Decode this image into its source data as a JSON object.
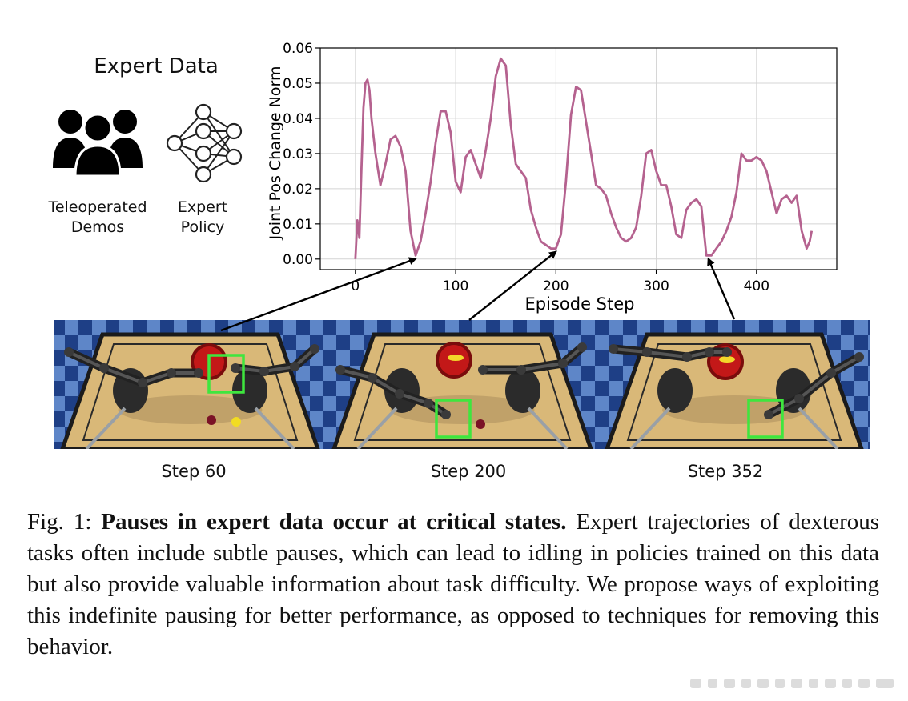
{
  "figure": {
    "expert_title": "Expert Data",
    "sources": [
      {
        "label_line1": "Teleoperated",
        "label_line2": "Demos",
        "icon": "people-icon"
      },
      {
        "label_line1": "Expert",
        "label_line2": "Policy",
        "icon": "neural-network-icon"
      }
    ],
    "frames": [
      {
        "label": "Step 60",
        "step": 60
      },
      {
        "label": "Step 200",
        "step": 200
      },
      {
        "label": "Step 352",
        "step": 352
      }
    ]
  },
  "chart_data": {
    "type": "line",
    "xlabel": "Episode Step",
    "ylabel": "Joint Pos Change Norm",
    "xlim": [
      -35,
      480
    ],
    "ylim": [
      -0.003,
      0.06
    ],
    "xticks": [
      0,
      100,
      200,
      300,
      400
    ],
    "yticks": [
      0.0,
      0.01,
      0.02,
      0.03,
      0.04,
      0.05,
      0.06
    ],
    "xtick_labels": [
      "0",
      "100",
      "200",
      "300",
      "400"
    ],
    "ytick_labels": [
      "0.00",
      "0.01",
      "0.02",
      "0.03",
      "0.04",
      "0.05",
      "0.06"
    ],
    "grid": true,
    "series": [
      {
        "color": "#b5628f",
        "x": [
          0,
          2,
          4,
          6,
          8,
          10,
          12,
          14,
          16,
          20,
          25,
          30,
          35,
          40,
          45,
          50,
          55,
          60,
          65,
          70,
          75,
          80,
          85,
          90,
          95,
          100,
          105,
          110,
          115,
          120,
          125,
          130,
          135,
          140,
          145,
          150,
          155,
          160,
          165,
          170,
          175,
          180,
          185,
          190,
          195,
          200,
          205,
          210,
          215,
          220,
          225,
          230,
          235,
          240,
          245,
          250,
          255,
          260,
          265,
          270,
          275,
          280,
          285,
          290,
          295,
          300,
          305,
          310,
          315,
          320,
          325,
          330,
          335,
          340,
          345,
          350,
          355,
          360,
          365,
          370,
          375,
          380,
          385,
          390,
          395,
          400,
          405,
          410,
          415,
          420,
          425,
          430,
          435,
          440,
          445,
          450,
          453,
          455
        ],
        "y": [
          0.0,
          0.011,
          0.006,
          0.025,
          0.043,
          0.05,
          0.051,
          0.048,
          0.04,
          0.03,
          0.021,
          0.027,
          0.034,
          0.035,
          0.032,
          0.025,
          0.008,
          0.001,
          0.005,
          0.013,
          0.022,
          0.033,
          0.042,
          0.042,
          0.036,
          0.022,
          0.019,
          0.029,
          0.031,
          0.027,
          0.023,
          0.031,
          0.04,
          0.052,
          0.057,
          0.055,
          0.038,
          0.027,
          0.025,
          0.023,
          0.014,
          0.009,
          0.005,
          0.004,
          0.003,
          0.003,
          0.007,
          0.022,
          0.041,
          0.049,
          0.048,
          0.039,
          0.03,
          0.021,
          0.02,
          0.018,
          0.013,
          0.009,
          0.006,
          0.005,
          0.006,
          0.009,
          0.018,
          0.03,
          0.031,
          0.025,
          0.021,
          0.021,
          0.015,
          0.007,
          0.006,
          0.014,
          0.016,
          0.017,
          0.015,
          0.001,
          0.001,
          0.003,
          0.005,
          0.008,
          0.012,
          0.019,
          0.03,
          0.028,
          0.028,
          0.029,
          0.028,
          0.025,
          0.019,
          0.013,
          0.017,
          0.018,
          0.016,
          0.018,
          0.008,
          0.003,
          0.005,
          0.008
        ]
      }
    ],
    "annotations": [
      {
        "type": "arrow",
        "from_frame": 1,
        "to_x": 60,
        "to_y": 0.001
      },
      {
        "type": "arrow",
        "from_frame": 2,
        "to_x": 200,
        "to_y": 0.003
      },
      {
        "type": "arrow",
        "from_frame": 3,
        "to_x": 352,
        "to_y": 0.001
      }
    ]
  },
  "caption": {
    "prefix": "Fig. 1: ",
    "bold": "Pauses in expert data occur at critical states.",
    "text": " Expert trajectories of dexterous tasks often include subtle pauses, which can lead to idling in policies trained on this data but also provide valuable information about task difficulty. We propose ways of exploiting this indefinite pausing for better performance, as opposed to techniques for removing this behavior."
  },
  "colors": {
    "line": "#b5628f",
    "highlight_box": "#3ee63e",
    "tile_dark": "#1e3f86",
    "tile_light": "#5e86c8",
    "table": "#d9b878",
    "table_border": "#1b1b1b",
    "bowl": "#c31818"
  }
}
